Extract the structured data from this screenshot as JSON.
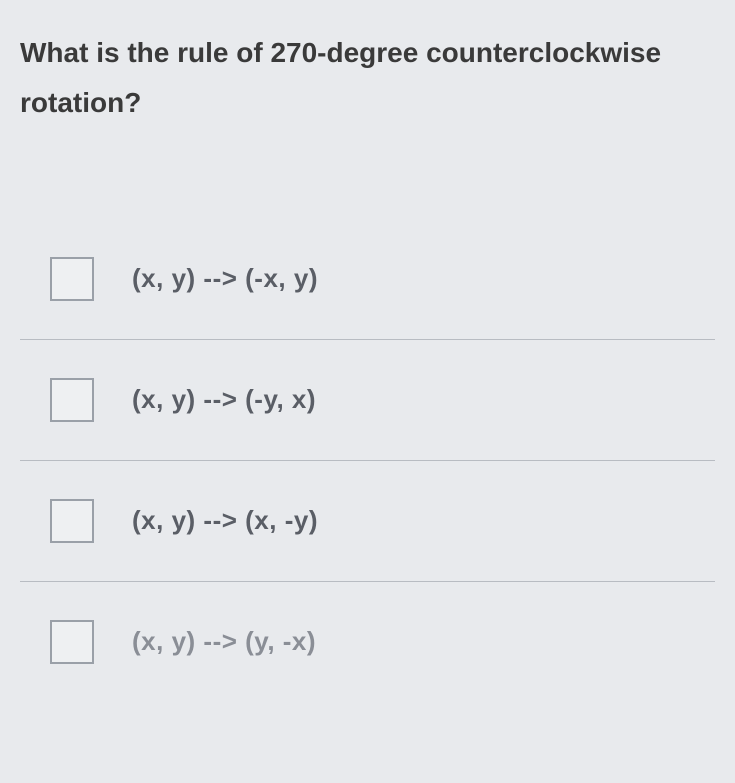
{
  "question": {
    "text_line1": "What is the rule of 270-degree counterclockwise",
    "text_line2": "rotation?"
  },
  "options": [
    {
      "label": "(x, y) --> (-x, y)",
      "faded": false
    },
    {
      "label": "(x, y) --> (-y, x)",
      "faded": false
    },
    {
      "label": "(x, y) --> (x, -y)",
      "faded": false
    },
    {
      "label": "(x, y) --> (y, -x)",
      "faded": true
    }
  ],
  "styles": {
    "background_color": "#e8eaed",
    "question_color": "#3a3a3a",
    "question_fontsize": 28,
    "question_fontweight": 700,
    "option_color": "#5a5e66",
    "option_faded_color": "#8a8e96",
    "option_fontsize": 26,
    "option_fontweight": 600,
    "checkbox_border_color": "#9aa0a8",
    "checkbox_bg_color": "#eef0f2",
    "checkbox_size": 44,
    "divider_color": "#b8bcc2"
  }
}
